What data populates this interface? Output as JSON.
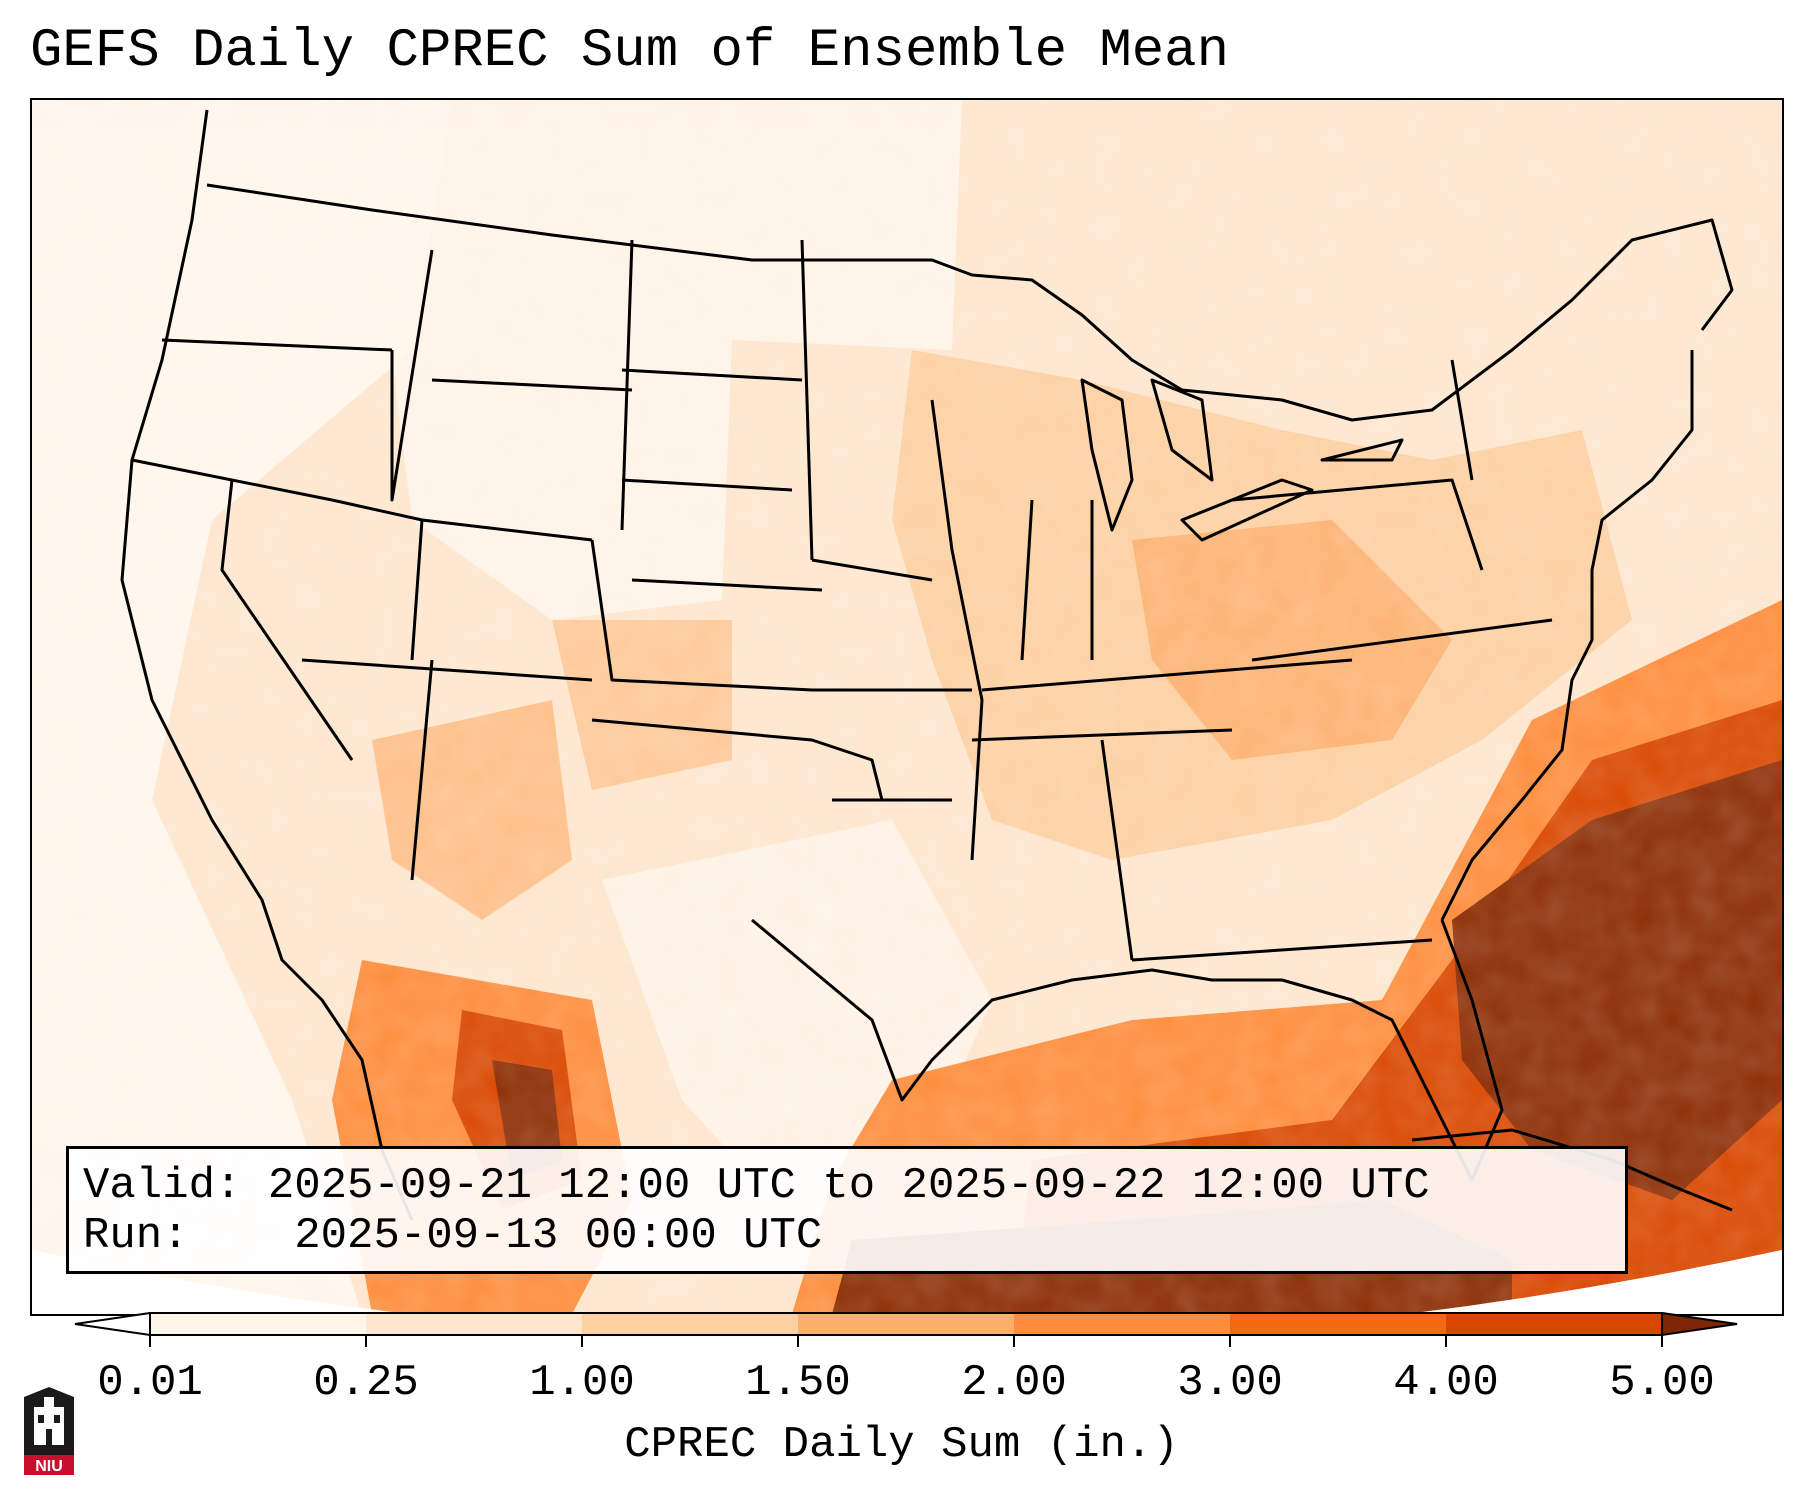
{
  "title": "GEFS Daily CPREC Sum of Ensemble Mean",
  "info": {
    "valid_label": "Valid:",
    "valid_value": "2025-09-21 12:00 UTC to 2025-09-22 12:00 UTC",
    "run_label": "Run:",
    "run_value": "2025-09-13 00:00 UTC"
  },
  "colorbar": {
    "label": "CPREC Daily Sum (in.)",
    "ticks": [
      "0.01",
      "0.25",
      "1.00",
      "1.50",
      "2.00",
      "3.00",
      "4.00",
      "5.00"
    ],
    "colors": [
      "#fff5eb",
      "#fee6ce",
      "#fdd0a2",
      "#fdae6b",
      "#fd8d3c",
      "#f16913",
      "#d94801",
      "#8c2d04"
    ],
    "over_color": "#7f2704",
    "under_color": "#ffffff"
  },
  "logo": {
    "text": "NIU",
    "icon": "niu-building-icon",
    "color": "#c8102e"
  }
}
